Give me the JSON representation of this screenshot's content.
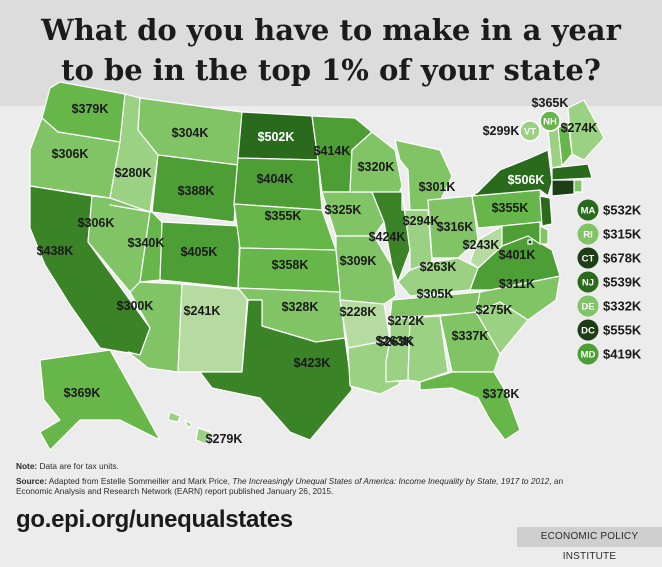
{
  "title": {
    "line1": "What do you have to make in a year",
    "line2": "to be in the top 1% of your state?"
  },
  "colors": {
    "background": "#ececec",
    "title_band": "#dcdcdc",
    "scale": [
      "#b5dba0",
      "#9bd183",
      "#80c465",
      "#66b649",
      "#4d9f35",
      "#3a8327",
      "#2a6a1d",
      "#1d3d14"
    ]
  },
  "states": [
    {
      "abbr": "WA",
      "value": "$379K"
    },
    {
      "abbr": "OR",
      "value": "$306K"
    },
    {
      "abbr": "CA",
      "value": "$438K"
    },
    {
      "abbr": "ID",
      "value": "$280K"
    },
    {
      "abbr": "NV",
      "value": "$306K"
    },
    {
      "abbr": "MT",
      "value": "$304K"
    },
    {
      "abbr": "WY",
      "value": "$388K"
    },
    {
      "abbr": "UT",
      "value": "$340K"
    },
    {
      "abbr": "AZ",
      "value": "$300K"
    },
    {
      "abbr": "CO",
      "value": "$405K"
    },
    {
      "abbr": "NM",
      "value": "$241K"
    },
    {
      "abbr": "ND",
      "value": "$502K"
    },
    {
      "abbr": "SD",
      "value": "$404K"
    },
    {
      "abbr": "NE",
      "value": "$355K"
    },
    {
      "abbr": "KS",
      "value": "$358K"
    },
    {
      "abbr": "OK",
      "value": "$328K"
    },
    {
      "abbr": "TX",
      "value": "$423K"
    },
    {
      "abbr": "MN",
      "value": "$414K"
    },
    {
      "abbr": "IA",
      "value": "$325K"
    },
    {
      "abbr": "MO",
      "value": "$309K"
    },
    {
      "abbr": "AR",
      "value": "$228K"
    },
    {
      "abbr": "LA",
      "value": "$263K"
    },
    {
      "abbr": "WI",
      "value": "$320K"
    },
    {
      "abbr": "IL",
      "value": "$424K"
    },
    {
      "abbr": "MI",
      "value": "$301K"
    },
    {
      "abbr": "IN",
      "value": "$294K"
    },
    {
      "abbr": "OH",
      "value": "$316K"
    },
    {
      "abbr": "KY",
      "value": "$263K"
    },
    {
      "abbr": "TN",
      "value": "$305K"
    },
    {
      "abbr": "MS",
      "value": "$272K"
    },
    {
      "abbr": "AL",
      "value": "$263K"
    },
    {
      "abbr": "GA",
      "value": "$337K"
    },
    {
      "abbr": "FL",
      "value": "$378K"
    },
    {
      "abbr": "SC",
      "value": "$275K"
    },
    {
      "abbr": "NC",
      "value": "$311K"
    },
    {
      "abbr": "VA",
      "value": "$401K"
    },
    {
      "abbr": "WV",
      "value": "$243K"
    },
    {
      "abbr": "PA",
      "value": "$355K"
    },
    {
      "abbr": "NY",
      "value": "$506K"
    },
    {
      "abbr": "ME",
      "value": "$274K"
    },
    {
      "abbr": "NH",
      "value": "$365K"
    },
    {
      "abbr": "VT",
      "value": "$299K"
    },
    {
      "abbr": "AK",
      "value": "$369K"
    },
    {
      "abbr": "HI",
      "value": "$279K"
    }
  ],
  "small_states": [
    {
      "abbr": "MA",
      "value": "$532K"
    },
    {
      "abbr": "RI",
      "value": "$315K"
    },
    {
      "abbr": "CT",
      "value": "$678K"
    },
    {
      "abbr": "NJ",
      "value": "$539K"
    },
    {
      "abbr": "DE",
      "value": "$332K"
    },
    {
      "abbr": "DC",
      "value": "$555K"
    },
    {
      "abbr": "MD",
      "value": "$419K"
    }
  ],
  "footnotes": {
    "note_label": "Note:",
    "note_text": "Data are for tax units.",
    "source_label": "Source:",
    "source_text1": "Adapted from Estelle Sommeiller and Mark Price,",
    "source_title": "The Increasingly Unequal States of America: Income Inequality by State, 1917 to 2012",
    "source_text2": ", an Economic Analysis and Research Network (EARN) report published January 26, 2015."
  },
  "url": "go.epi.org/unequalstates",
  "source_badge": "ECONOMIC POLICY INSTITUTE"
}
